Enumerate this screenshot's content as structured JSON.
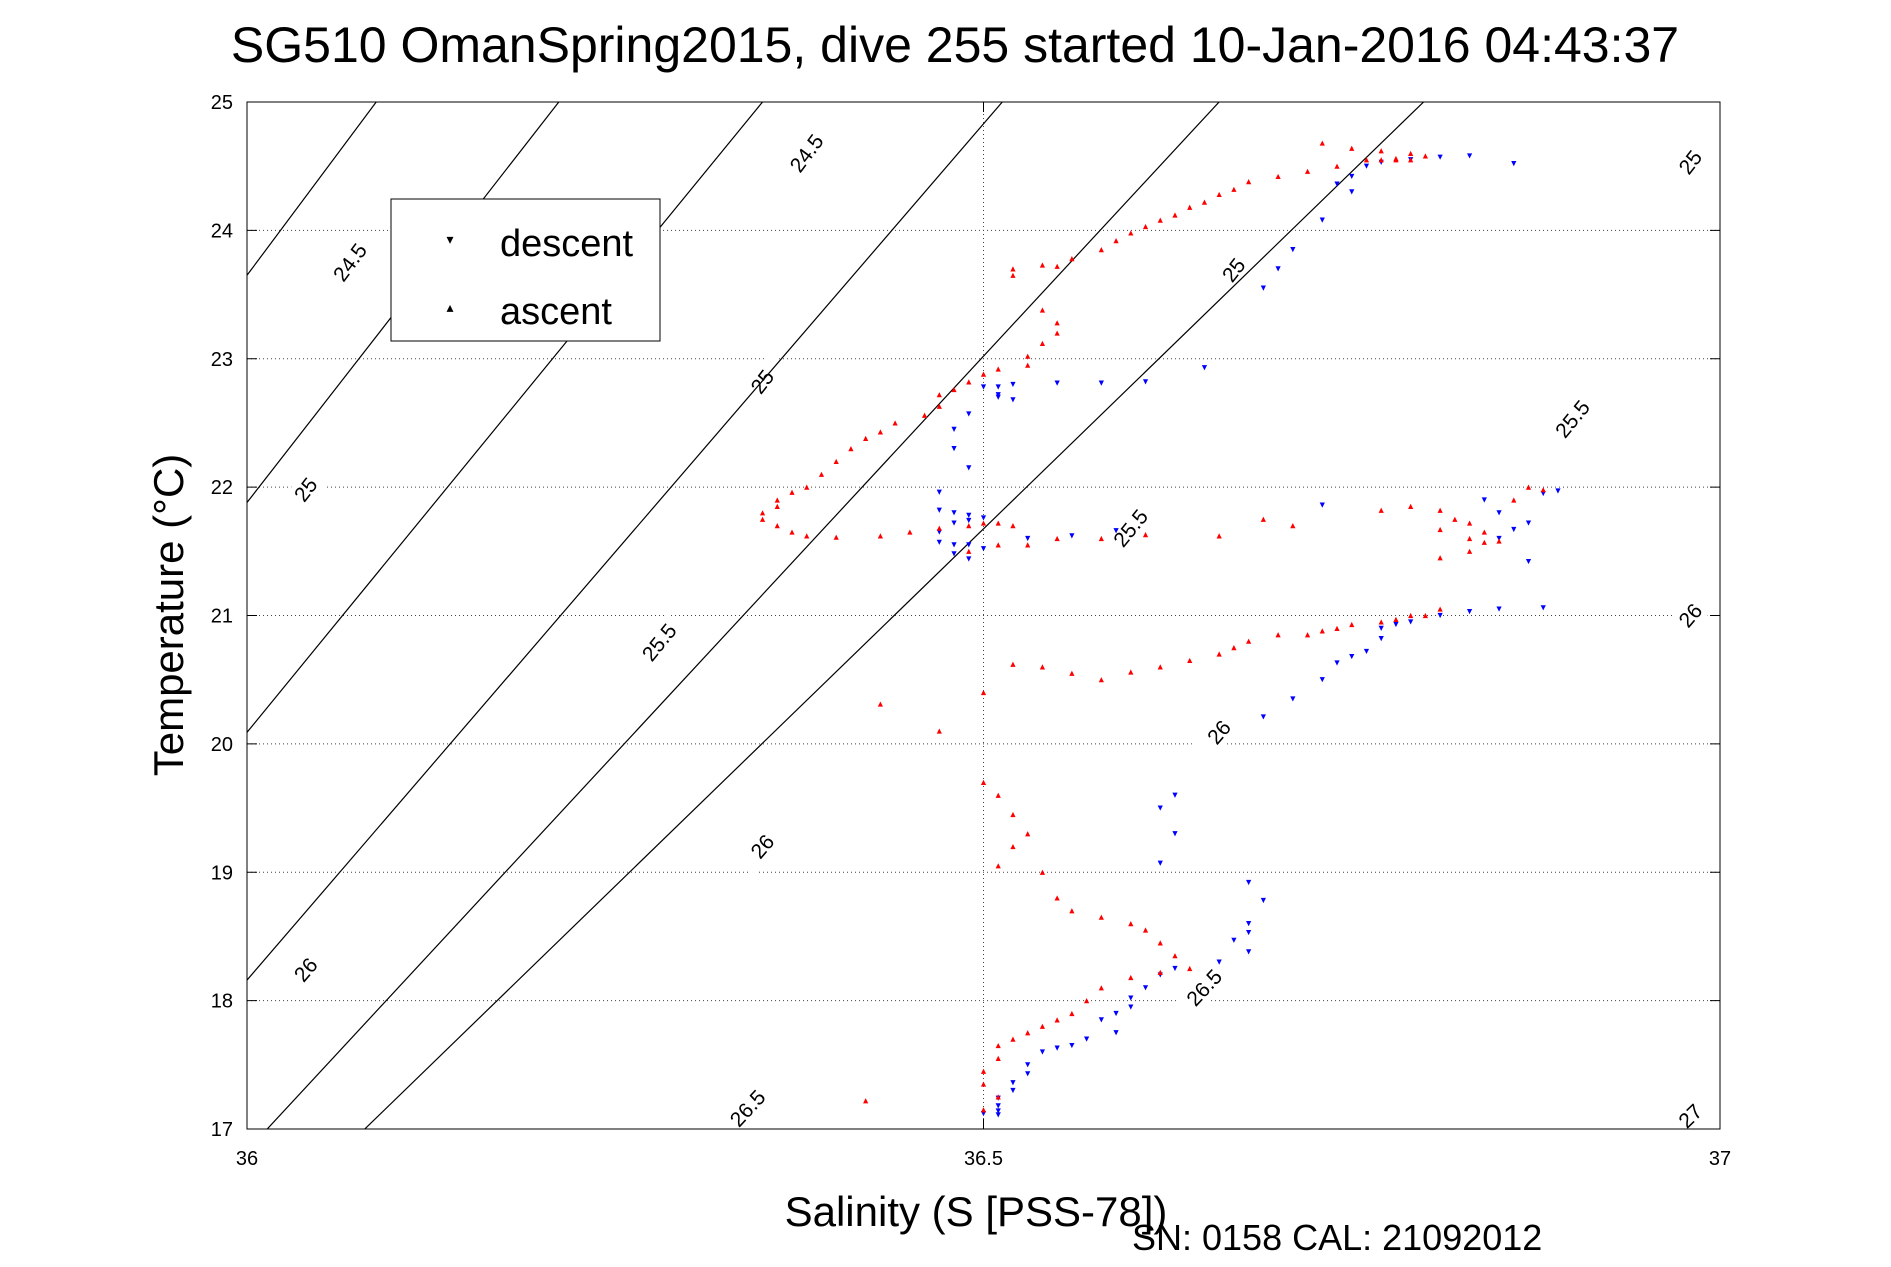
{
  "chart_data": {
    "type": "scatter",
    "title": "SG510 OmanSpring2015, dive 255 started 10-Jan-2016 04:43:37",
    "xlabel": "Salinity (S [PSS-78])",
    "ylabel": "Temperature (°C)",
    "footer": "SN: 0158  CAL: 21092012",
    "xlim": [
      36,
      37
    ],
    "ylim": [
      17,
      25
    ],
    "xticks": [
      "36",
      "36.5",
      "37"
    ],
    "yticks": [
      "17",
      "18",
      "19",
      "20",
      "21",
      "22",
      "23",
      "24",
      "25"
    ],
    "grid": true,
    "legend_position": "top-left",
    "legend": [
      {
        "name": "descent",
        "marker": "▾",
        "color": "#0000ff"
      },
      {
        "name": "ascent",
        "marker": "▴",
        "color": "#ff0000"
      }
    ],
    "contours": [
      {
        "label": "24.5",
        "slope": 15.39,
        "t_at_s36": 23.65,
        "label_at": [
          [
            36.07,
            23.75
          ],
          [
            36.38,
            24.6
          ]
        ]
      },
      {
        "label": "25",
        "slope": 14.74,
        "t_at_s36": 21.88,
        "label_at": [
          [
            36.04,
            21.98
          ],
          [
            36.35,
            22.82
          ],
          [
            36.67,
            23.69
          ],
          [
            36.98,
            24.53
          ]
        ]
      },
      {
        "label": "25.5",
        "slope": 14.03,
        "t_at_s36": 20.09,
        "label_at": [
          [
            36.28,
            20.79
          ],
          [
            36.6,
            21.68
          ],
          [
            36.9,
            22.53
          ]
        ]
      },
      {
        "label": "26",
        "slope": 13.34,
        "t_at_s36": 18.16,
        "label_at": [
          [
            36.04,
            18.24
          ],
          [
            36.35,
            19.2
          ],
          [
            36.66,
            20.09
          ],
          [
            36.98,
            21.0
          ]
        ]
      },
      {
        "label": "26.5",
        "slope": 12.38,
        "t_at_s36": 16.83,
        "label_at": [
          [
            36.34,
            17.16
          ],
          [
            36.65,
            18.1
          ]
        ]
      },
      {
        "label": "27",
        "slope": 11.13,
        "t_at_s36": 16.11,
        "label_at": [
          [
            36.98,
            17.1
          ]
        ]
      }
    ],
    "series": [
      {
        "name": "descent",
        "points": [
          [
            36.83,
            24.58
          ],
          [
            36.81,
            24.57
          ],
          [
            36.79,
            24.55
          ],
          [
            36.77,
            24.53
          ],
          [
            36.76,
            24.5
          ],
          [
            36.75,
            24.42
          ],
          [
            36.74,
            24.36
          ],
          [
            36.75,
            24.3
          ],
          [
            36.86,
            24.52
          ],
          [
            36.73,
            24.08
          ],
          [
            36.71,
            23.85
          ],
          [
            36.7,
            23.7
          ],
          [
            36.69,
            23.55
          ],
          [
            36.65,
            22.93
          ],
          [
            36.61,
            22.82
          ],
          [
            36.58,
            22.81
          ],
          [
            36.55,
            22.81
          ],
          [
            36.52,
            22.8
          ],
          [
            36.51,
            22.78
          ],
          [
            36.5,
            22.78
          ],
          [
            36.51,
            22.72
          ],
          [
            36.51,
            22.7
          ],
          [
            36.52,
            22.68
          ],
          [
            36.49,
            22.57
          ],
          [
            36.48,
            22.45
          ],
          [
            36.48,
            22.3
          ],
          [
            36.49,
            22.15
          ],
          [
            36.47,
            21.96
          ],
          [
            36.47,
            21.82
          ],
          [
            36.48,
            21.8
          ],
          [
            36.49,
            21.78
          ],
          [
            36.5,
            21.76
          ],
          [
            36.49,
            21.74
          ],
          [
            36.48,
            21.72
          ],
          [
            36.47,
            21.65
          ],
          [
            36.47,
            21.57
          ],
          [
            36.48,
            21.55
          ],
          [
            36.49,
            21.55
          ],
          [
            36.48,
            21.48
          ],
          [
            36.49,
            21.44
          ],
          [
            36.5,
            21.52
          ],
          [
            36.53,
            21.6
          ],
          [
            36.56,
            21.62
          ],
          [
            36.59,
            21.66
          ],
          [
            36.73,
            21.86
          ],
          [
            36.84,
            21.9
          ],
          [
            36.85,
            21.8
          ],
          [
            36.86,
            21.67
          ],
          [
            36.85,
            21.6
          ],
          [
            36.87,
            21.72
          ],
          [
            36.87,
            21.42
          ],
          [
            36.88,
            21.95
          ],
          [
            36.89,
            21.97
          ],
          [
            36.88,
            21.06
          ],
          [
            36.85,
            21.05
          ],
          [
            36.83,
            21.03
          ],
          [
            36.81,
            21.0
          ],
          [
            36.79,
            20.95
          ],
          [
            36.78,
            20.93
          ],
          [
            36.77,
            20.9
          ],
          [
            36.77,
            20.82
          ],
          [
            36.76,
            20.72
          ],
          [
            36.75,
            20.68
          ],
          [
            36.74,
            20.63
          ],
          [
            36.73,
            20.5
          ],
          [
            36.71,
            20.35
          ],
          [
            36.69,
            20.21
          ],
          [
            36.63,
            19.6
          ],
          [
            36.62,
            19.5
          ],
          [
            36.63,
            19.3
          ],
          [
            36.62,
            19.07
          ],
          [
            36.68,
            18.92
          ],
          [
            36.69,
            18.78
          ],
          [
            36.68,
            18.6
          ],
          [
            36.68,
            18.53
          ],
          [
            36.67,
            18.47
          ],
          [
            36.68,
            18.38
          ],
          [
            36.66,
            18.3
          ],
          [
            36.63,
            18.25
          ],
          [
            36.62,
            18.2
          ],
          [
            36.61,
            18.1
          ],
          [
            36.6,
            18.02
          ],
          [
            36.6,
            17.95
          ],
          [
            36.59,
            17.9
          ],
          [
            36.58,
            17.85
          ],
          [
            36.59,
            17.75
          ],
          [
            36.57,
            17.7
          ],
          [
            36.56,
            17.65
          ],
          [
            36.55,
            17.63
          ],
          [
            36.54,
            17.6
          ],
          [
            36.53,
            17.5
          ],
          [
            36.53,
            17.43
          ],
          [
            36.52,
            17.36
          ],
          [
            36.52,
            17.3
          ],
          [
            36.51,
            17.24
          ],
          [
            36.51,
            17.18
          ],
          [
            36.51,
            17.14
          ],
          [
            36.5,
            17.12
          ],
          [
            36.51,
            17.11
          ]
        ]
      },
      {
        "name": "ascent",
        "points": [
          [
            36.73,
            24.68
          ],
          [
            36.75,
            24.64
          ],
          [
            36.77,
            24.62
          ],
          [
            36.79,
            24.6
          ],
          [
            36.8,
            24.58
          ],
          [
            36.79,
            24.55
          ],
          [
            36.78,
            24.56
          ],
          [
            36.78,
            24.55
          ],
          [
            36.77,
            24.55
          ],
          [
            36.76,
            24.55
          ],
          [
            36.74,
            24.5
          ],
          [
            36.72,
            24.46
          ],
          [
            36.7,
            24.42
          ],
          [
            36.68,
            24.38
          ],
          [
            36.67,
            24.32
          ],
          [
            36.66,
            24.28
          ],
          [
            36.65,
            24.22
          ],
          [
            36.64,
            24.18
          ],
          [
            36.63,
            24.12
          ],
          [
            36.62,
            24.08
          ],
          [
            36.61,
            24.03
          ],
          [
            36.6,
            23.98
          ],
          [
            36.59,
            23.92
          ],
          [
            36.58,
            23.85
          ],
          [
            36.56,
            23.78
          ],
          [
            36.55,
            23.72
          ],
          [
            36.54,
            23.73
          ],
          [
            36.52,
            23.7
          ],
          [
            36.52,
            23.65
          ],
          [
            36.54,
            23.38
          ],
          [
            36.55,
            23.28
          ],
          [
            36.55,
            23.2
          ],
          [
            36.54,
            23.12
          ],
          [
            36.53,
            23.02
          ],
          [
            36.53,
            22.95
          ],
          [
            36.51,
            22.92
          ],
          [
            36.5,
            22.88
          ],
          [
            36.49,
            22.82
          ],
          [
            36.48,
            22.76
          ],
          [
            36.47,
            22.72
          ],
          [
            36.47,
            22.63
          ],
          [
            36.46,
            22.56
          ],
          [
            36.44,
            22.5
          ],
          [
            36.43,
            22.43
          ],
          [
            36.42,
            22.38
          ],
          [
            36.41,
            22.3
          ],
          [
            36.4,
            22.2
          ],
          [
            36.39,
            22.1
          ],
          [
            36.38,
            22.0
          ],
          [
            36.37,
            21.96
          ],
          [
            36.36,
            21.9
          ],
          [
            36.36,
            21.85
          ],
          [
            36.35,
            21.8
          ],
          [
            36.35,
            21.75
          ],
          [
            36.36,
            21.7
          ],
          [
            36.37,
            21.65
          ],
          [
            36.38,
            21.62
          ],
          [
            36.4,
            21.61
          ],
          [
            36.43,
            21.62
          ],
          [
            36.45,
            21.65
          ],
          [
            36.47,
            21.68
          ],
          [
            36.49,
            21.7
          ],
          [
            36.5,
            21.72
          ],
          [
            36.51,
            21.72
          ],
          [
            36.52,
            21.7
          ],
          [
            36.49,
            21.5
          ],
          [
            36.51,
            21.55
          ],
          [
            36.53,
            21.55
          ],
          [
            36.55,
            21.6
          ],
          [
            36.58,
            21.6
          ],
          [
            36.61,
            21.63
          ],
          [
            36.66,
            21.62
          ],
          [
            36.69,
            21.75
          ],
          [
            36.71,
            21.7
          ],
          [
            36.77,
            21.82
          ],
          [
            36.79,
            21.85
          ],
          [
            36.81,
            21.82
          ],
          [
            36.82,
            21.75
          ],
          [
            36.83,
            21.72
          ],
          [
            36.84,
            21.65
          ],
          [
            36.85,
            21.58
          ],
          [
            36.86,
            21.9
          ],
          [
            36.87,
            22.0
          ],
          [
            36.88,
            21.98
          ],
          [
            36.81,
            21.67
          ],
          [
            36.83,
            21.6
          ],
          [
            36.84,
            21.57
          ],
          [
            36.83,
            21.5
          ],
          [
            36.81,
            21.45
          ],
          [
            36.81,
            21.05
          ],
          [
            36.8,
            21.0
          ],
          [
            36.79,
            21.0
          ],
          [
            36.78,
            20.97
          ],
          [
            36.77,
            20.95
          ],
          [
            36.75,
            20.93
          ],
          [
            36.74,
            20.9
          ],
          [
            36.73,
            20.88
          ],
          [
            36.72,
            20.85
          ],
          [
            36.7,
            20.85
          ],
          [
            36.68,
            20.8
          ],
          [
            36.67,
            20.75
          ],
          [
            36.66,
            20.7
          ],
          [
            36.64,
            20.65
          ],
          [
            36.62,
            20.6
          ],
          [
            36.6,
            20.56
          ],
          [
            36.58,
            20.5
          ],
          [
            36.56,
            20.55
          ],
          [
            36.54,
            20.6
          ],
          [
            36.52,
            20.62
          ],
          [
            36.5,
            20.4
          ],
          [
            36.47,
            20.1
          ],
          [
            36.43,
            20.31
          ],
          [
            36.5,
            19.7
          ],
          [
            36.51,
            19.6
          ],
          [
            36.52,
            19.45
          ],
          [
            36.53,
            19.3
          ],
          [
            36.52,
            19.2
          ],
          [
            36.51,
            19.05
          ],
          [
            36.54,
            19.0
          ],
          [
            36.55,
            18.8
          ],
          [
            36.56,
            18.7
          ],
          [
            36.58,
            18.65
          ],
          [
            36.6,
            18.6
          ],
          [
            36.61,
            18.55
          ],
          [
            36.62,
            18.45
          ],
          [
            36.63,
            18.35
          ],
          [
            36.64,
            18.25
          ],
          [
            36.62,
            18.22
          ],
          [
            36.6,
            18.18
          ],
          [
            36.58,
            18.1
          ],
          [
            36.57,
            18.0
          ],
          [
            36.56,
            17.9
          ],
          [
            36.55,
            17.85
          ],
          [
            36.54,
            17.8
          ],
          [
            36.53,
            17.75
          ],
          [
            36.52,
            17.7
          ],
          [
            36.51,
            17.65
          ],
          [
            36.51,
            17.55
          ],
          [
            36.5,
            17.45
          ],
          [
            36.5,
            17.35
          ],
          [
            36.51,
            17.25
          ],
          [
            36.5,
            17.15
          ],
          [
            36.42,
            17.22
          ]
        ]
      }
    ]
  }
}
